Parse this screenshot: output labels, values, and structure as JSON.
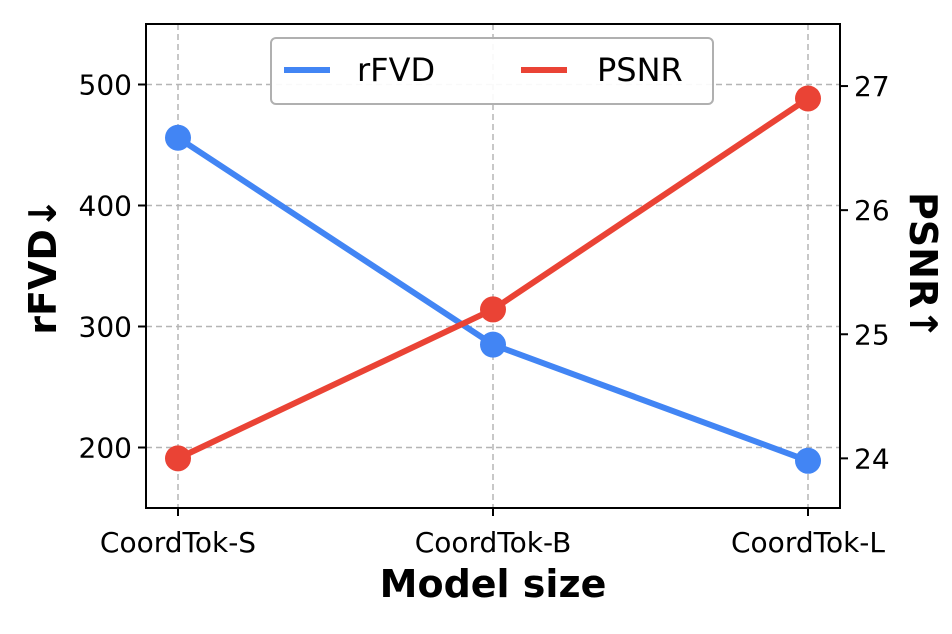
{
  "chart_data": {
    "type": "line",
    "categories": [
      "CoordTok-S",
      "CoordTok-B",
      "CoordTok-L"
    ],
    "xlabel": "Model size",
    "ylabel": "rFVD↓",
    "y2label": "PSNR↑",
    "ylim": [
      150,
      550
    ],
    "y2lim": [
      23.6,
      27.5
    ],
    "yticks": [
      200,
      300,
      400,
      500
    ],
    "y2ticks": [
      24,
      25,
      26,
      27
    ],
    "grid": true,
    "legend_position": "top-center",
    "series": [
      {
        "name": "rFVD",
        "axis": "left",
        "color": "#4285f4",
        "values": [
          456,
          285,
          189
        ]
      },
      {
        "name": "PSNR",
        "axis": "right",
        "color": "#ea4335",
        "values": [
          24.0,
          25.2,
          26.9
        ]
      }
    ]
  }
}
